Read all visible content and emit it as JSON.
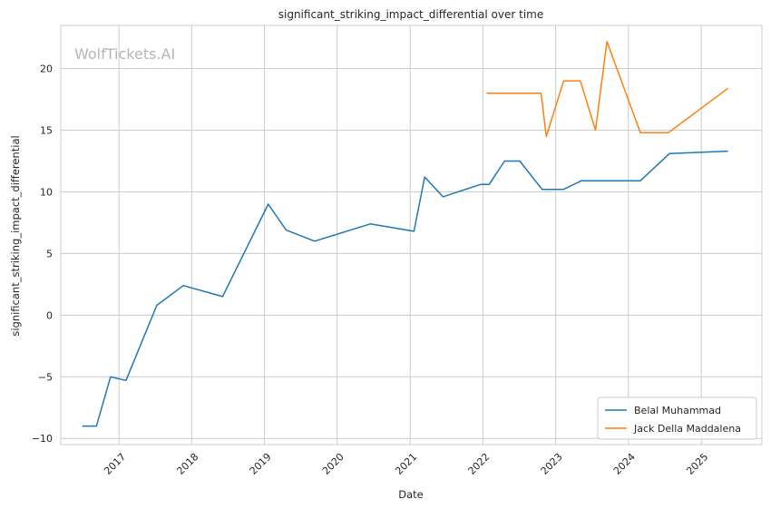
{
  "chart_data": {
    "type": "line",
    "title": "significant_striking_impact_differential over time",
    "xlabel": "Date",
    "ylabel": "significant_striking_impact_differential",
    "watermark": "WolfTickets.AI",
    "x_ticks": [
      "2017",
      "2018",
      "2019",
      "2020",
      "2021",
      "2022",
      "2023",
      "2024",
      "2025"
    ],
    "y_ticks": [
      -10,
      -5,
      0,
      5,
      10,
      15,
      20
    ],
    "y_tick_labels": [
      "−10",
      "−5",
      "0",
      "5",
      "10",
      "15",
      "20"
    ],
    "xlim": [
      "2016-03-15",
      "2025-11-01"
    ],
    "ylim": [
      -10.5,
      23.5
    ],
    "grid": true,
    "legend_position": "bottom-right",
    "series": [
      {
        "name": "Belal Muhammad",
        "color": "#1f77b4",
        "points": [
          [
            "2016-07-01",
            -9.0
          ],
          [
            "2016-09-10",
            -9.0
          ],
          [
            "2016-11-20",
            -5.0
          ],
          [
            "2017-02-05",
            -5.3
          ],
          [
            "2017-07-10",
            0.8
          ],
          [
            "2017-11-20",
            2.4
          ],
          [
            "2018-06-05",
            1.5
          ],
          [
            "2019-01-20",
            9.0
          ],
          [
            "2019-04-20",
            6.9
          ],
          [
            "2019-09-10",
            6.0
          ],
          [
            "2020-06-15",
            7.4
          ],
          [
            "2021-01-20",
            6.8
          ],
          [
            "2021-03-15",
            11.2
          ],
          [
            "2021-06-15",
            9.6
          ],
          [
            "2021-12-20",
            10.6
          ],
          [
            "2022-02-01",
            10.6
          ],
          [
            "2022-04-20",
            12.5
          ],
          [
            "2022-07-05",
            12.5
          ],
          [
            "2022-10-25",
            10.2
          ],
          [
            "2023-02-10",
            10.2
          ],
          [
            "2023-05-10",
            10.9
          ],
          [
            "2024-03-01",
            10.9
          ],
          [
            "2024-07-25",
            13.1
          ],
          [
            "2025-05-15",
            13.3
          ]
        ]
      },
      {
        "name": "Jack Della Maddalena",
        "color": "#ff7f0e",
        "points": [
          [
            "2022-01-20",
            18.0
          ],
          [
            "2022-10-20",
            18.0
          ],
          [
            "2022-11-15",
            14.5
          ],
          [
            "2023-02-10",
            19.0
          ],
          [
            "2023-05-05",
            19.0
          ],
          [
            "2023-07-20",
            15.0
          ],
          [
            "2023-09-15",
            22.2
          ],
          [
            "2024-03-01",
            14.8
          ],
          [
            "2024-07-20",
            14.8
          ],
          [
            "2025-05-15",
            18.4
          ]
        ]
      }
    ]
  }
}
